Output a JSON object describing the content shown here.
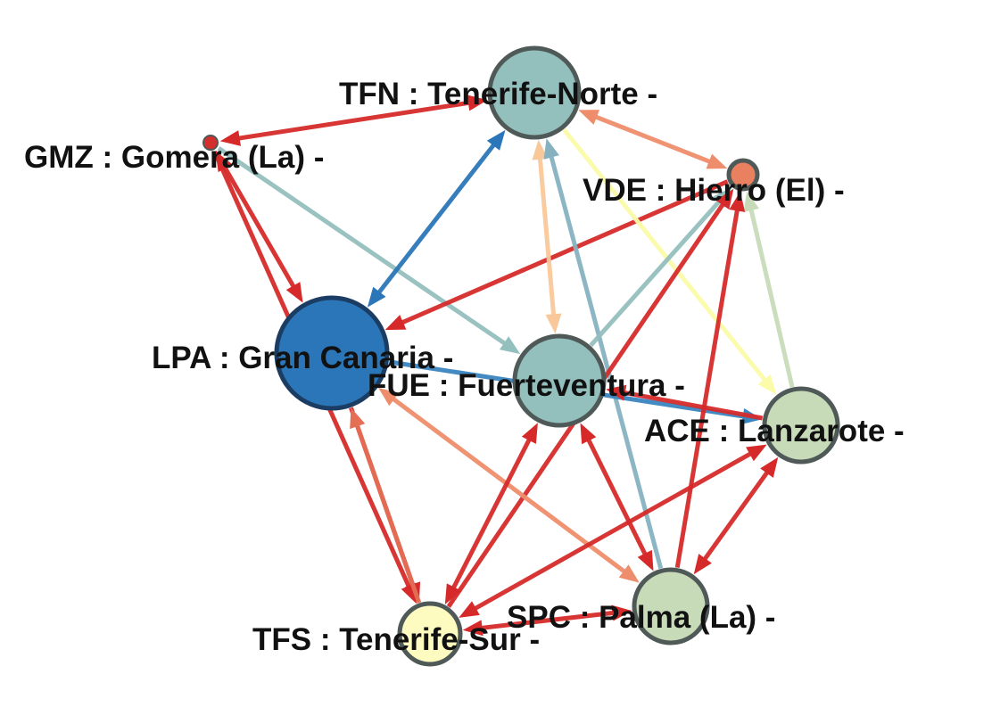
{
  "nodes": [
    {
      "id": "TFN",
      "label": "TFN : Tenerife-Norte -",
      "color": "#93bfbd"
    },
    {
      "id": "GMZ",
      "label": "GMZ : Gomera (La) -",
      "color": "#d32f2f"
    },
    {
      "id": "VDE",
      "label": "VDE : Hierro (El) -",
      "color": "#e9805f"
    },
    {
      "id": "LPA",
      "label": "LPA : Gran Canaria -",
      "color": "#2b76b8"
    },
    {
      "id": "FUE",
      "label": "FUE : Fuerteventura -",
      "color": "#93bfbd"
    },
    {
      "id": "ACE",
      "label": "ACE : Lanzarote -",
      "color": "#c7dbb9"
    },
    {
      "id": "TFS",
      "label": "TFS : Tenerife-Sur -",
      "color": "#fdfbbf"
    },
    {
      "id": "SPC",
      "label": "SPC : Palma (La) -",
      "color": "#c7dbb9"
    }
  ],
  "edges": [
    {
      "source": "GMZ",
      "target": "TFN",
      "color": "#d62a2a",
      "bidirectional": true
    },
    {
      "source": "GMZ",
      "target": "LPA",
      "color": "#d62a2a",
      "bidirectional": true
    },
    {
      "source": "GMZ",
      "target": "FUE",
      "color": "#93bfbd",
      "bidirectional": false
    },
    {
      "source": "GMZ",
      "target": "TFS",
      "color": "#d62a2a",
      "bidirectional": false
    },
    {
      "source": "LPA",
      "target": "TFN",
      "color": "#2b76b8",
      "bidirectional": true
    },
    {
      "source": "VDE",
      "target": "LPA",
      "color": "#d62a2a",
      "bidirectional": false
    },
    {
      "source": "TFN",
      "target": "VDE",
      "color": "#ee8d6c",
      "bidirectional": true
    },
    {
      "source": "TFN",
      "target": "FUE",
      "color": "#f9c89a",
      "bidirectional": true
    },
    {
      "source": "TFN",
      "target": "ACE",
      "color": "#fbfbaa",
      "bidirectional": false
    },
    {
      "source": "SPC",
      "target": "TFN",
      "color": "#86b2c0",
      "bidirectional": false
    },
    {
      "source": "FUE",
      "target": "VDE",
      "color": "#93bfbd",
      "bidirectional": false
    },
    {
      "source": "ACE",
      "target": "VDE",
      "color": "#c7dbb9",
      "bidirectional": false
    },
    {
      "source": "LPA",
      "target": "ACE",
      "color": "#3a85c0",
      "bidirectional": false
    },
    {
      "source": "ACE",
      "target": "FUE",
      "color": "#d62a2a",
      "bidirectional": false
    },
    {
      "source": "TFS",
      "target": "VDE",
      "color": "#d62a2a",
      "bidirectional": false
    },
    {
      "source": "SPC",
      "target": "VDE",
      "color": "#d62a2a",
      "bidirectional": false
    },
    {
      "source": "LPA",
      "target": "TFS",
      "color": "#d62a2a",
      "bidirectional": false
    },
    {
      "source": "TFS",
      "target": "LPA",
      "color": "#e46f55",
      "bidirectional": false
    },
    {
      "source": "SPC",
      "target": "LPA",
      "color": "#ee8d6c",
      "bidirectional": true
    },
    {
      "source": "FUE",
      "target": "TFS",
      "color": "#d62a2a",
      "bidirectional": true
    },
    {
      "source": "FUE",
      "target": "SPC",
      "color": "#d62a2a",
      "bidirectional": true
    },
    {
      "source": "ACE",
      "target": "TFS",
      "color": "#d62a2a",
      "bidirectional": true
    },
    {
      "source": "ACE",
      "target": "SPC",
      "color": "#d62a2a",
      "bidirectional": true
    },
    {
      "source": "TFS",
      "target": "SPC",
      "color": "#d62a2a",
      "bidirectional": true
    }
  ]
}
